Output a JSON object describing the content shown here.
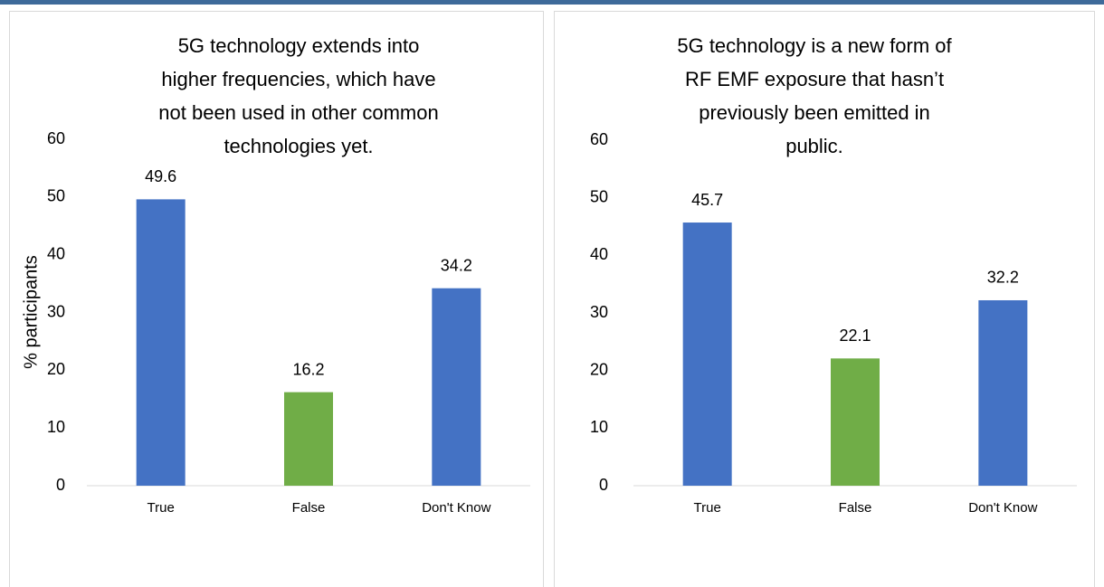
{
  "chart_data": [
    {
      "type": "bar",
      "title": "5G technology extends into higher frequencies, which have not been used in other common technologies yet.",
      "y_label": "% participants",
      "categories": [
        "True",
        "False",
        "Don't Know"
      ],
      "values": [
        49.6,
        16.2,
        34.2
      ],
      "colors": [
        "#4472c4",
        "#70ad47",
        "#4472c4"
      ],
      "ylim": [
        0,
        60
      ],
      "yticks": [
        0,
        10,
        20,
        30,
        40,
        50,
        60
      ],
      "grid": false
    },
    {
      "type": "bar",
      "title": "5G technology is a new form of RF EMF exposure that hasn’t previously been emitted in public.",
      "categories": [
        "True",
        "False",
        "Don't Know"
      ],
      "values": [
        45.7,
        22.1,
        32.2
      ],
      "colors": [
        "#4472c4",
        "#70ad47",
        "#4472c4"
      ],
      "ylim": [
        0,
        60
      ],
      "yticks": [
        0,
        10,
        20,
        30,
        40,
        50,
        60
      ],
      "grid": false
    }
  ]
}
